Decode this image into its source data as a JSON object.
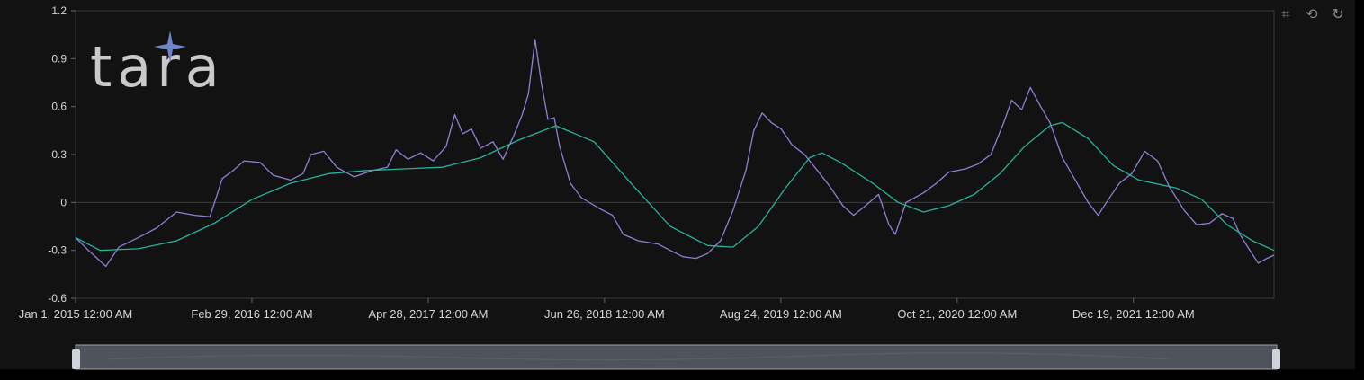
{
  "logo": {
    "text": "tara"
  },
  "toolbox": [
    {
      "name": "zoom-icon",
      "glyph": "⌗"
    },
    {
      "name": "zoom-reset-icon",
      "glyph": "⟲"
    },
    {
      "name": "restore-icon",
      "glyph": "↻"
    }
  ],
  "colors": {
    "background": "#121213",
    "oscillator": "#8d80d6",
    "smoothed": "#27b29c",
    "axis": "#3a3a3a",
    "slider": "#4f535b"
  },
  "chart_data": {
    "type": "line",
    "ylim": [
      -0.6,
      1.2
    ],
    "yticks": [
      1.2,
      0.9,
      0.6,
      0.3,
      0,
      -0.3,
      -0.6
    ],
    "yticklabels": [
      "1.2",
      "0.9",
      "0.6",
      "0.3",
      "0",
      "-0.3",
      "-0.6"
    ],
    "xlim": [
      "2015-01-01",
      "2022-11-22"
    ],
    "xticks": [
      "2015-01-01",
      "2016-02-29",
      "2017-04-28",
      "2018-06-26",
      "2019-08-24",
      "2020-10-21",
      "2021-12-19"
    ],
    "xticklabels": [
      "Jan 1, 2015 12:00 AM",
      "Feb 29, 2016 12:00 AM",
      "Apr 28, 2017 12:00 AM",
      "Jun 26, 2018 12:00 AM",
      "Aug 24, 2019 12:00 AM",
      "Oct 21, 2020 12:00 AM",
      "Dec 19, 2021 12:00 AM"
    ],
    "grid": false,
    "series": [
      {
        "color": "#8d80d6",
        "points": [
          [
            "2015-01-01",
            -0.22
          ],
          [
            "2015-02-01",
            -0.3
          ],
          [
            "2015-03-15",
            -0.4
          ],
          [
            "2015-04-15",
            -0.28
          ],
          [
            "2015-06-01",
            -0.22
          ],
          [
            "2015-07-15",
            -0.16
          ],
          [
            "2015-09-01",
            -0.06
          ],
          [
            "2015-10-15",
            -0.08
          ],
          [
            "2015-11-20",
            -0.09
          ],
          [
            "2015-12-20",
            0.15
          ],
          [
            "2016-01-15",
            0.2
          ],
          [
            "2016-02-10",
            0.26
          ],
          [
            "2016-03-20",
            0.25
          ],
          [
            "2016-04-20",
            0.17
          ],
          [
            "2016-06-01",
            0.14
          ],
          [
            "2016-07-01",
            0.18
          ],
          [
            "2016-07-20",
            0.3
          ],
          [
            "2016-08-20",
            0.32
          ],
          [
            "2016-09-20",
            0.22
          ],
          [
            "2016-11-01",
            0.16
          ],
          [
            "2016-12-15",
            0.2
          ],
          [
            "2017-01-20",
            0.22
          ],
          [
            "2017-02-10",
            0.33
          ],
          [
            "2017-03-10",
            0.27
          ],
          [
            "2017-04-10",
            0.31
          ],
          [
            "2017-05-10",
            0.26
          ],
          [
            "2017-06-10",
            0.35
          ],
          [
            "2017-07-01",
            0.55
          ],
          [
            "2017-07-20",
            0.43
          ],
          [
            "2017-08-10",
            0.46
          ],
          [
            "2017-09-01",
            0.34
          ],
          [
            "2017-10-01",
            0.38
          ],
          [
            "2017-10-25",
            0.27
          ],
          [
            "2017-11-20",
            0.42
          ],
          [
            "2017-12-10",
            0.55
          ],
          [
            "2017-12-25",
            0.68
          ],
          [
            "2018-01-10",
            1.02
          ],
          [
            "2018-01-25",
            0.75
          ],
          [
            "2018-02-10",
            0.52
          ],
          [
            "2018-02-25",
            0.53
          ],
          [
            "2018-03-10",
            0.35
          ],
          [
            "2018-04-05",
            0.12
          ],
          [
            "2018-05-01",
            0.03
          ],
          [
            "2018-06-15",
            -0.04
          ],
          [
            "2018-07-15",
            -0.08
          ],
          [
            "2018-08-10",
            -0.2
          ],
          [
            "2018-09-15",
            -0.24
          ],
          [
            "2018-11-01",
            -0.26
          ],
          [
            "2018-12-01",
            -0.3
          ],
          [
            "2019-01-01",
            -0.34
          ],
          [
            "2019-02-01",
            -0.35
          ],
          [
            "2019-03-01",
            -0.32
          ],
          [
            "2019-04-01",
            -0.24
          ],
          [
            "2019-05-01",
            -0.05
          ],
          [
            "2019-06-01",
            0.2
          ],
          [
            "2019-06-20",
            0.45
          ],
          [
            "2019-07-10",
            0.56
          ],
          [
            "2019-08-01",
            0.5
          ],
          [
            "2019-08-25",
            0.46
          ],
          [
            "2019-09-20",
            0.36
          ],
          [
            "2019-10-20",
            0.3
          ],
          [
            "2019-11-20",
            0.2
          ],
          [
            "2019-12-20",
            0.1
          ],
          [
            "2020-01-20",
            -0.02
          ],
          [
            "2020-02-15",
            -0.08
          ],
          [
            "2020-03-15",
            -0.02
          ],
          [
            "2020-04-15",
            0.05
          ],
          [
            "2020-05-10",
            -0.14
          ],
          [
            "2020-05-25",
            -0.2
          ],
          [
            "2020-06-20",
            0.0
          ],
          [
            "2020-08-01",
            0.06
          ],
          [
            "2020-09-01",
            0.12
          ],
          [
            "2020-10-01",
            0.19
          ],
          [
            "2020-11-10",
            0.21
          ],
          [
            "2020-12-10",
            0.24
          ],
          [
            "2021-01-10",
            0.3
          ],
          [
            "2021-02-10",
            0.5
          ],
          [
            "2021-03-01",
            0.64
          ],
          [
            "2021-03-25",
            0.58
          ],
          [
            "2021-04-15",
            0.72
          ],
          [
            "2021-05-10",
            0.6
          ],
          [
            "2021-06-01",
            0.5
          ],
          [
            "2021-07-01",
            0.28
          ],
          [
            "2021-08-01",
            0.14
          ],
          [
            "2021-09-01",
            0.0
          ],
          [
            "2021-09-25",
            -0.08
          ],
          [
            "2021-10-20",
            0.02
          ],
          [
            "2021-11-15",
            0.12
          ],
          [
            "2021-12-15",
            0.18
          ],
          [
            "2022-01-15",
            0.32
          ],
          [
            "2022-02-15",
            0.26
          ],
          [
            "2022-03-15",
            0.1
          ],
          [
            "2022-04-20",
            -0.05
          ],
          [
            "2022-05-20",
            -0.14
          ],
          [
            "2022-06-20",
            -0.13
          ],
          [
            "2022-07-20",
            -0.07
          ],
          [
            "2022-08-15",
            -0.1
          ],
          [
            "2022-09-01",
            -0.2
          ],
          [
            "2022-09-20",
            -0.28
          ],
          [
            "2022-10-15",
            -0.38
          ],
          [
            "2022-11-05",
            -0.35
          ],
          [
            "2022-11-22",
            -0.33
          ]
        ]
      },
      {
        "color": "#27b29c",
        "points": [
          [
            "2015-01-01",
            -0.22
          ],
          [
            "2015-03-01",
            -0.3
          ],
          [
            "2015-06-01",
            -0.29
          ],
          [
            "2015-09-01",
            -0.24
          ],
          [
            "2015-12-01",
            -0.13
          ],
          [
            "2016-03-01",
            0.02
          ],
          [
            "2016-06-01",
            0.12
          ],
          [
            "2016-09-01",
            0.18
          ],
          [
            "2016-12-01",
            0.2
          ],
          [
            "2017-03-01",
            0.21
          ],
          [
            "2017-06-01",
            0.22
          ],
          [
            "2017-09-01",
            0.28
          ],
          [
            "2017-12-01",
            0.39
          ],
          [
            "2018-03-01",
            0.48
          ],
          [
            "2018-06-01",
            0.38
          ],
          [
            "2018-09-01",
            0.11
          ],
          [
            "2018-12-01",
            -0.15
          ],
          [
            "2019-03-01",
            -0.27
          ],
          [
            "2019-05-01",
            -0.28
          ],
          [
            "2019-07-01",
            -0.15
          ],
          [
            "2019-09-01",
            0.08
          ],
          [
            "2019-11-01",
            0.28
          ],
          [
            "2019-12-01",
            0.31
          ],
          [
            "2020-01-15",
            0.25
          ],
          [
            "2020-04-01",
            0.12
          ],
          [
            "2020-06-01",
            0.0
          ],
          [
            "2020-08-01",
            -0.06
          ],
          [
            "2020-10-01",
            -0.02
          ],
          [
            "2020-12-01",
            0.05
          ],
          [
            "2021-02-01",
            0.18
          ],
          [
            "2021-04-01",
            0.35
          ],
          [
            "2021-06-01",
            0.48
          ],
          [
            "2021-07-01",
            0.5
          ],
          [
            "2021-09-01",
            0.4
          ],
          [
            "2021-11-01",
            0.23
          ],
          [
            "2022-01-01",
            0.14
          ],
          [
            "2022-04-01",
            0.09
          ],
          [
            "2022-06-01",
            0.02
          ],
          [
            "2022-08-01",
            -0.14
          ],
          [
            "2022-10-01",
            -0.24
          ],
          [
            "2022-11-22",
            -0.3
          ]
        ]
      }
    ]
  }
}
